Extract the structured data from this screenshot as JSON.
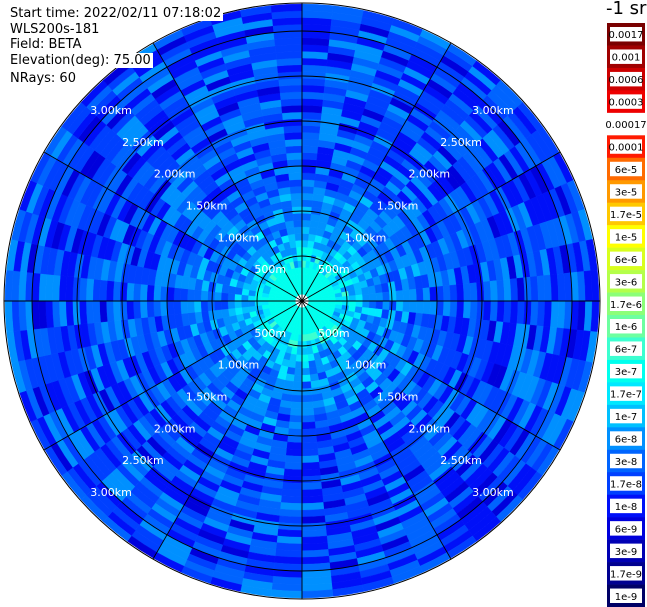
{
  "header": {
    "start_time": "Start time: 2022/02/11 07:18:02",
    "instrument": "WLS200s-181",
    "field": "Field: BETA",
    "elevation": "Elevation(deg): 75.00",
    "nrays": "NRays: 60"
  },
  "colorbar": {
    "unit": "-1 sr",
    "labels": [
      "0.0017",
      "0.001",
      "0.0006",
      "0.0003",
      "0.00017",
      "0.0001",
      "6e-5",
      "3e-5",
      "1.7e-5",
      "1e-5",
      "6e-6",
      "3e-6",
      "1.7e-6",
      "1e-6",
      "6e-7",
      "3e-7",
      "1.7e-7",
      "1e-7",
      "6e-8",
      "3e-8",
      "1.7e-8",
      "1e-8",
      "6e-9",
      "3e-9",
      "1.7e-9",
      "1e-9"
    ],
    "colors": [
      "#7a0000",
      "#a00000",
      "#cc0000",
      "#ee0000",
      "#ffffff",
      "#ff1a00",
      "#ff6a00",
      "#ff9900",
      "#ffc800",
      "#ffff00",
      "#d8ff1e",
      "#b4ff4a",
      "#8cff78",
      "#6dffa0",
      "#3cffd0",
      "#00ffee",
      "#00e8ff",
      "#00c0ff",
      "#0090ff",
      "#0064ff",
      "#0040ff",
      "#0010f8",
      "#0000dc",
      "#0000b4",
      "#000090",
      "#000066"
    ]
  },
  "chart_data": {
    "type": "heatmap",
    "projection": "polar PPI",
    "field": "BETA",
    "nrays": 60,
    "range_rings_km": [
      0.5,
      1.0,
      1.5,
      2.0,
      2.5,
      3.0
    ],
    "ring_labels": [
      "500m",
      "1.00km",
      "1.50km",
      "2.00km",
      "2.50km",
      "3.00km"
    ],
    "max_range_km": 3.3,
    "radial_spokes_deg": [
      0,
      30,
      60,
      90,
      120,
      150,
      180,
      210,
      240,
      270,
      300,
      330
    ],
    "radial_profile": [
      {
        "range_km": 0.1,
        "value": 3e-07
      },
      {
        "range_km": 0.3,
        "value": 2e-07
      },
      {
        "range_km": 0.5,
        "value": 1.2e-07
      },
      {
        "range_km": 0.75,
        "value": 5e-08
      },
      {
        "range_km": 1.0,
        "value": 3e-08
      },
      {
        "range_km": 1.5,
        "value": 2e-08
      },
      {
        "range_km": 2.0,
        "value": 1.5e-08
      },
      {
        "range_km": 2.5,
        "value": 1.5e-08
      },
      {
        "range_km": 3.0,
        "value": 1.4e-08
      }
    ]
  }
}
